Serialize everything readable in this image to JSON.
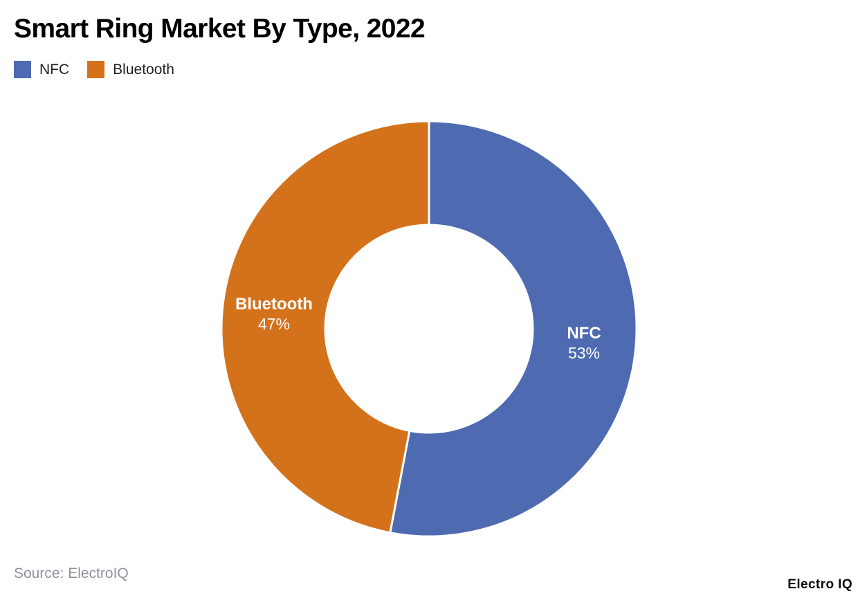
{
  "header": {
    "title": "Smart Ring Market By Type, 2022",
    "title_color": "#000000"
  },
  "chart_data": {
    "type": "pie",
    "title": "Smart Ring Market By Type, 2022",
    "donut": true,
    "inner_radius_ratio": 0.5,
    "start_angle": "north",
    "direction": "clockwise",
    "legend_position": "top-left",
    "label_text_color": "#ffffff",
    "slices": [
      {
        "label": "NFC",
        "value": 53,
        "display_value": "53%",
        "color": "#4e6ab1"
      },
      {
        "label": "Bluetooth",
        "value": 47,
        "display_value": "47%",
        "color": "#d4721c"
      }
    ]
  },
  "footer": {
    "source": "Source: ElectroIQ",
    "source_color": "#8d939c",
    "brand": "Electro IQ",
    "brand_color": "#0a0a0a"
  }
}
